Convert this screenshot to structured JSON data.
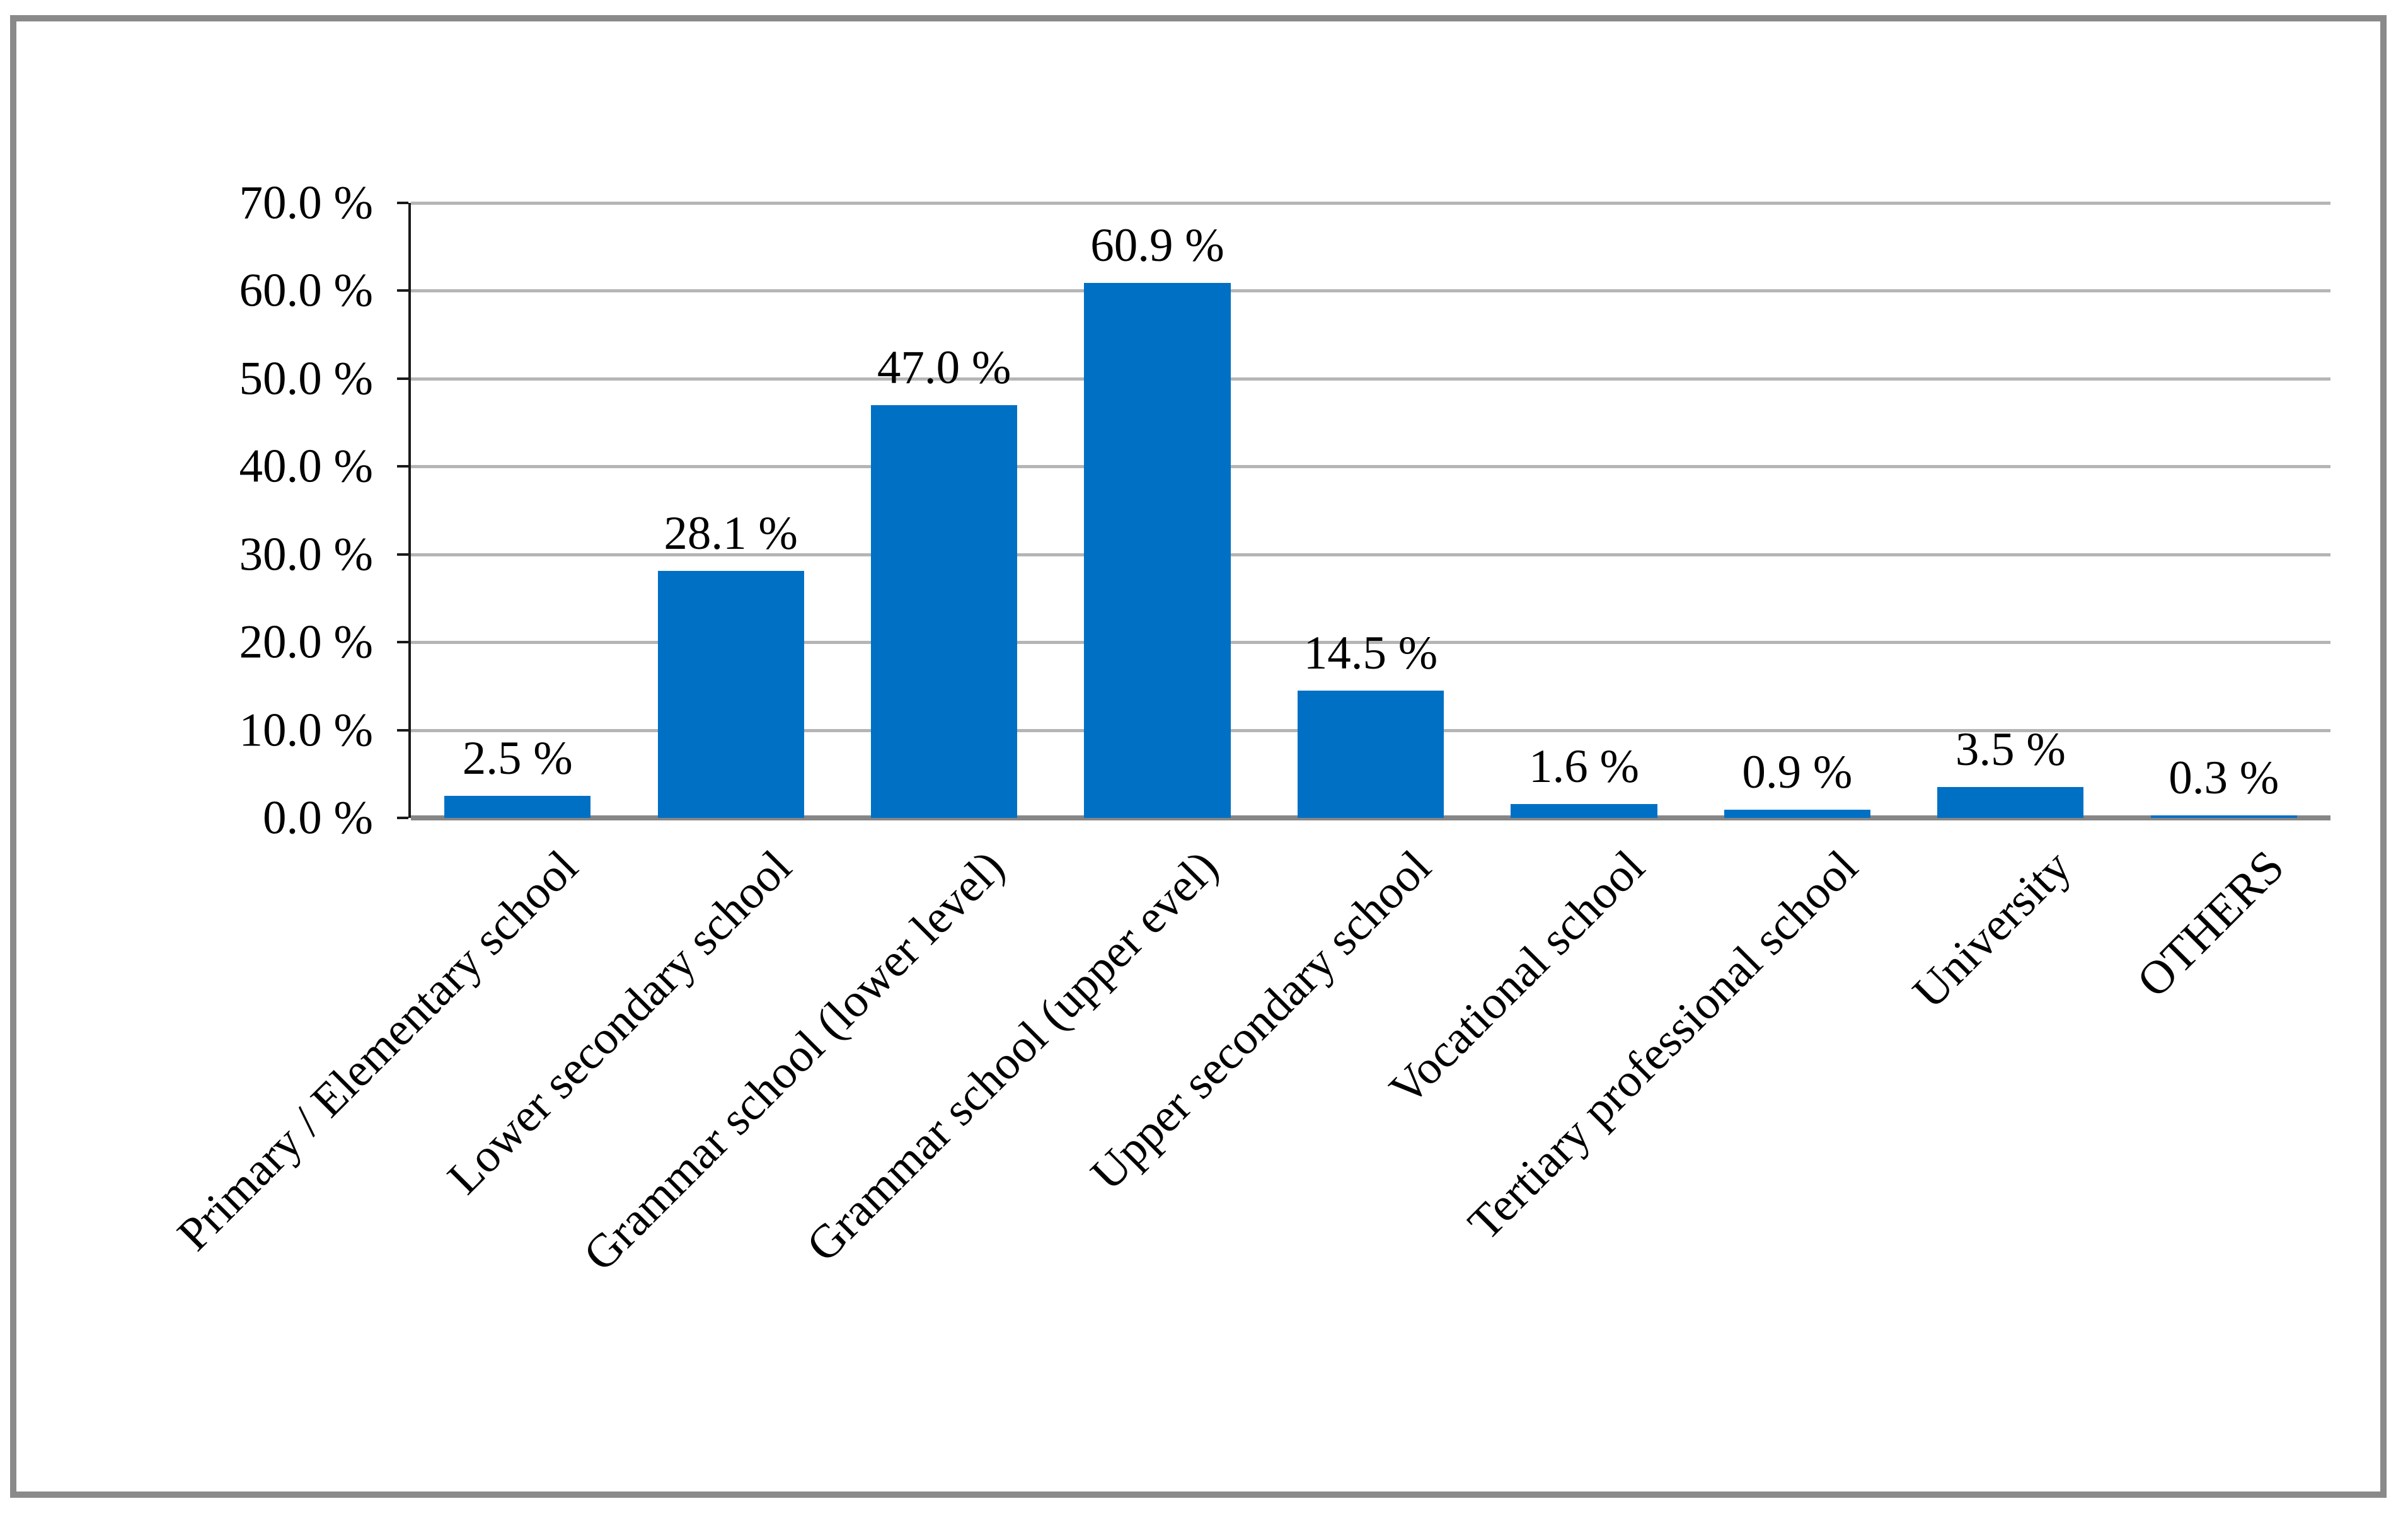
{
  "chart_data": {
    "type": "bar",
    "title": "",
    "xlabel": "",
    "ylabel": "",
    "categories": [
      "Primary / Elementary school",
      "Lower secondary school",
      "Grammar school (lower level)",
      "Grammar school (upper evel)",
      "Upper secondary school",
      "Vocational school",
      "Tertiary professional school",
      "University",
      "OTHERS"
    ],
    "values": [
      2.5,
      28.1,
      47.0,
      60.9,
      14.5,
      1.6,
      0.9,
      3.5,
      0.3
    ],
    "value_labels": [
      "2.5 %",
      "28.1 %",
      "47.0 %",
      "60.9 %",
      "14.5 %",
      "1.6 %",
      "0.9 %",
      "3.5 %",
      "0.3 %"
    ],
    "y_ticks": [
      "70.0 %",
      "60.0 %",
      "50.0 %",
      "40.0 %",
      "30.0 %",
      "20.0 %",
      "10.0 %",
      "0.0 %"
    ],
    "y_tick_values": [
      70,
      60,
      50,
      40,
      30,
      20,
      10,
      0
    ],
    "ylim": [
      0,
      70
    ],
    "grid": true,
    "legend": "none",
    "x_label_rotation_deg": 45
  },
  "colors": {
    "bar": "#0070C4",
    "gridline": "#B5B5B5",
    "baseline": "#868686",
    "axis": "#1A1A1A",
    "frame": "#8A8A8A",
    "text": "#000000",
    "background": "#FFFFFF"
  }
}
